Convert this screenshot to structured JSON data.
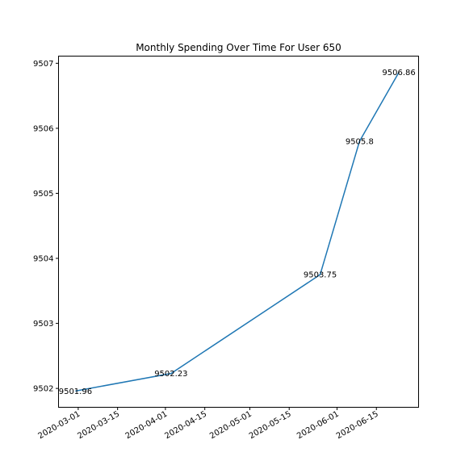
{
  "chart_data": {
    "type": "line",
    "title": "Monthly Spending Over Time For User 650",
    "xlabel": "",
    "ylabel": "",
    "x": [
      "2020-02-29",
      "2020-04-03",
      "2020-05-26",
      "2020-06-09",
      "2020-06-23"
    ],
    "values": [
      9501.96,
      9502.23,
      9503.75,
      9505.8,
      9506.86
    ],
    "data_labels": [
      "9501.96",
      "9502.23",
      "9503.75",
      "9505.8",
      "9506.86"
    ],
    "xlim": [
      "2020-02-23",
      "2020-06-30"
    ],
    "ylim": [
      9501.71,
      9507.11
    ],
    "x_ticks": [
      "2020-03-01",
      "2020-03-15",
      "2020-04-01",
      "2020-04-15",
      "2020-05-01",
      "2020-05-15",
      "2020-06-01",
      "2020-06-15"
    ],
    "y_ticks": [
      "9502",
      "9503",
      "9504",
      "9505",
      "9506",
      "9507"
    ],
    "y_tick_values": [
      9502,
      9503,
      9504,
      9505,
      9506,
      9507
    ],
    "line_color": "#1f77b4",
    "grid": false,
    "legend": "none"
  }
}
